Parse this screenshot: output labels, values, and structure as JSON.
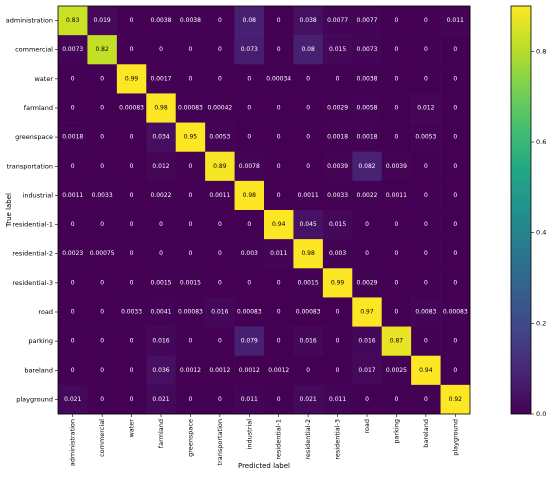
{
  "chart_data": {
    "type": "heatmap",
    "title": "",
    "xlabel": "Predicted label",
    "ylabel": "True label",
    "row_labels": [
      "administration",
      "commercial",
      "water",
      "farmland",
      "greenspace",
      "transportation",
      "industrial",
      "residential-1",
      "residential-2",
      "residential-3",
      "road",
      "parking",
      "bareland",
      "playground"
    ],
    "col_labels": [
      "administration",
      "commercial",
      "water",
      "farmland",
      "greenspace",
      "transportation",
      "industrial",
      "residential-1",
      "residential-2",
      "residential-3",
      "road",
      "parking",
      "bareland",
      "playground"
    ],
    "cells": [
      [
        "0.83",
        "0.019",
        "0",
        "0.0038",
        "0.0038",
        "0",
        "0.08",
        "0",
        "0.038",
        "0.0077",
        "0.0077",
        "0",
        "0",
        "0.011"
      ],
      [
        "0.0073",
        "0.82",
        "0",
        "0",
        "0",
        "0",
        "0.073",
        "0",
        "0.08",
        "0.015",
        "0.0073",
        "0",
        "0",
        "0"
      ],
      [
        "0",
        "0",
        "0.99",
        "0.0017",
        "0",
        "0",
        "0",
        "0.00034",
        "0",
        "0",
        "0.0038",
        "0",
        "0",
        "0"
      ],
      [
        "0",
        "0",
        "0.00083",
        "0.98",
        "0.00083",
        "0.00042",
        "0",
        "0",
        "0",
        "0.0029",
        "0.0058",
        "0",
        "0.012",
        "0"
      ],
      [
        "0.0018",
        "0",
        "0",
        "0.034",
        "0.95",
        "0.0053",
        "0",
        "0",
        "0",
        "0.0018",
        "0.0018",
        "0",
        "0.0053",
        "0"
      ],
      [
        "0",
        "0",
        "0",
        "0.012",
        "0",
        "0.89",
        "0.0078",
        "0",
        "0",
        "0.0039",
        "0.082",
        "0.0039",
        "0",
        "0"
      ],
      [
        "0.0011",
        "0.0033",
        "0",
        "0.0022",
        "0",
        "0.0011",
        "0.98",
        "0",
        "0.0011",
        "0.0033",
        "0.0022",
        "0.0011",
        "0",
        "0"
      ],
      [
        "0",
        "0",
        "0",
        "0",
        "0",
        "0",
        "0",
        "0.94",
        "0.045",
        "0.015",
        "0",
        "0",
        "0",
        "0"
      ],
      [
        "0.0023",
        "0.00075",
        "0",
        "0",
        "0",
        "0",
        "0.003",
        "0.011",
        "0.98",
        "0.003",
        "0",
        "0",
        "0",
        "0"
      ],
      [
        "0",
        "0",
        "0",
        "0.0015",
        "0.0015",
        "0",
        "0",
        "0",
        "0.0015",
        "0.99",
        "0.0029",
        "0",
        "0",
        "0"
      ],
      [
        "0",
        "0",
        "0.0033",
        "0.0041",
        "0.00083",
        "0.016",
        "0.00083",
        "0",
        "0.00083",
        "0",
        "0.97",
        "0",
        "0.0083",
        "0.00083"
      ],
      [
        "0",
        "0",
        "0",
        "0.016",
        "0",
        "0",
        "0.079",
        "0",
        "0.016",
        "0",
        "0.016",
        "0.87",
        "0",
        "0"
      ],
      [
        "0",
        "0",
        "0",
        "0.036",
        "0.0012",
        "0.0012",
        "0.0012",
        "0.0012",
        "0",
        "0",
        "0.017",
        "0.0025",
        "0.94",
        "0"
      ],
      [
        "0.021",
        "0",
        "0",
        "0.021",
        "0",
        "0",
        "0.011",
        "0",
        "0.021",
        "0.011",
        "0",
        "0",
        "0",
        "0.92"
      ]
    ],
    "colorbar": {
      "colormap": "viridis",
      "range": [
        0,
        0.9
      ],
      "ticks": [
        "0.0",
        "0.2",
        "0.4",
        "0.6",
        "0.8"
      ]
    },
    "grid": false
  }
}
